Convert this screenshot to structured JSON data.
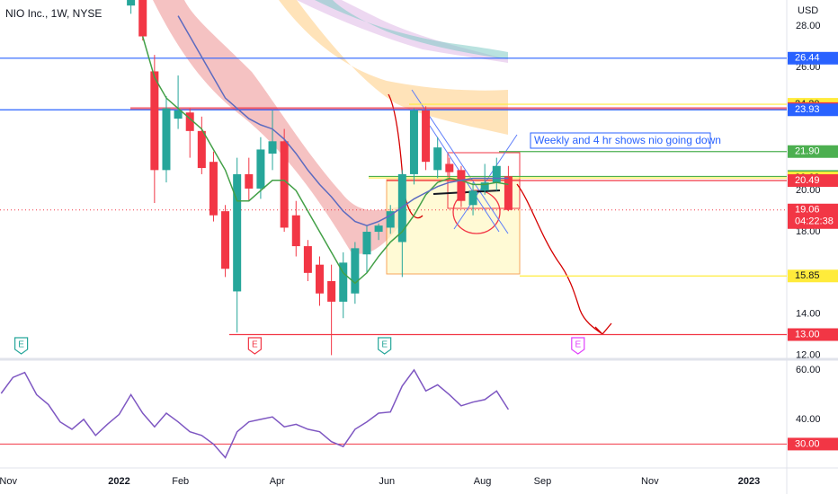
{
  "header": {
    "title": "NIO Inc., 1W, NYSE"
  },
  "chart_data": {
    "type": "candlestick",
    "currency": "USD",
    "x": [
      0,
      1,
      2,
      3,
      4,
      5,
      6,
      7,
      8,
      9,
      10,
      11,
      12,
      13,
      14,
      15,
      16,
      17,
      18,
      19,
      20,
      21,
      22,
      23,
      24,
      25,
      26,
      27,
      28,
      29,
      30,
      31,
      32
    ],
    "open": [
      29.0,
      29.4,
      25.8,
      21.0,
      23.5,
      23.8,
      22.9,
      21.4,
      19.0,
      15.1,
      20.8,
      20.1,
      21.8,
      22.4,
      18.8,
      17.3,
      16.4,
      15.6,
      14.6,
      15.0,
      16.9,
      18.0,
      18.2,
      17.5,
      20.8,
      23.9,
      21.0,
      21.3,
      21.0,
      19.3,
      20.0,
      20.4,
      20.7
    ],
    "high": [
      29.6,
      29.6,
      26.6,
      24.6,
      25.6,
      24.0,
      23.6,
      21.9,
      19.3,
      21.6,
      21.6,
      22.6,
      23.9,
      23.0,
      19.5,
      17.6,
      16.8,
      16.4,
      17.0,
      17.5,
      18.3,
      18.4,
      19.3,
      21.0,
      24.0,
      24.1,
      22.6,
      21.6,
      21.2,
      20.4,
      21.3,
      21.6,
      21.2
    ],
    "low": [
      28.6,
      27.3,
      19.4,
      20.4,
      23.0,
      21.6,
      20.8,
      18.5,
      15.8,
      13.1,
      19.5,
      19.6,
      21.0,
      18.0,
      16.8,
      15.6,
      14.4,
      12.0,
      13.8,
      14.5,
      16.0,
      17.6,
      17.9,
      15.8,
      20.3,
      21.0,
      20.6,
      20.5,
      19.2,
      18.8,
      19.8,
      20.0,
      19.0
    ],
    "close": [
      29.4,
      27.5,
      21.0,
      24.0,
      23.9,
      22.9,
      21.1,
      18.8,
      16.2,
      20.8,
      20.1,
      22.0,
      22.4,
      18.2,
      17.3,
      16.0,
      15.0,
      14.6,
      16.5,
      17.2,
      18.0,
      18.3,
      19.0,
      20.8,
      23.9,
      21.4,
      22.1,
      20.9,
      19.5,
      20.0,
      20.4,
      21.2,
      19.06
    ],
    "up_color": "#26a69a",
    "down_color": "#f23645",
    "lines": [
      {
        "color": "#43a047",
        "values": [
          null,
          27.5,
          25.5,
          24.5,
          24.0,
          23.5,
          23.0,
          22.0,
          21.0,
          19.5,
          19.5,
          20.0,
          20.5,
          20.5,
          20.0,
          19.0,
          18.0,
          17.0,
          16.0,
          15.5,
          16.0,
          16.8,
          17.5,
          18.0,
          18.8,
          19.8,
          20.4,
          20.6,
          20.5,
          20.3,
          20.3,
          20.4,
          20.3
        ]
      },
      {
        "color": "#5c6bc0",
        "values": [
          null,
          null,
          null,
          null,
          28.5,
          27.5,
          26.5,
          25.5,
          24.5,
          24.0,
          23.5,
          23.2,
          23.0,
          22.5,
          21.8,
          21.0,
          20.3,
          19.7,
          19.0,
          18.5,
          18.3,
          18.5,
          18.8,
          19.2,
          19.6,
          19.9,
          20.2,
          20.4,
          20.5,
          20.6,
          20.6,
          20.6,
          20.6
        ]
      }
    ],
    "xlim": [
      -11.1,
      55.6
    ],
    "xticks": [
      {
        "value": -10.4,
        "label": "Nov"
      },
      {
        "value": -1.0,
        "label": "2022"
      },
      {
        "value": 4.2,
        "label": "Feb"
      },
      {
        "value": 12.4,
        "label": "Apr"
      },
      {
        "value": 21.7,
        "label": "Jun"
      },
      {
        "value": 29.8,
        "label": "Aug"
      },
      {
        "value": 34.9,
        "label": "Sep"
      },
      {
        "value": 44.0,
        "label": "Nov"
      },
      {
        "value": 52.4,
        "label": "2023"
      }
    ],
    "ylim": [
      11.8,
      29.27
    ],
    "yticks": [
      {
        "value": 28,
        "label": "28.00"
      },
      {
        "value": 26,
        "label": "26.00"
      },
      {
        "value": 20,
        "label": "20.00"
      },
      {
        "value": 18,
        "label": "18.00"
      },
      {
        "value": 14,
        "label": "14.00"
      },
      {
        "value": 12,
        "label": "12.00"
      }
    ],
    "levels": [
      {
        "value": 26.44,
        "color": "#2962ff"
      },
      {
        "value": 24.2,
        "label": "24.20",
        "color": "#ffeb3b"
      },
      {
        "value": 23.99,
        "color": "#f23645"
      },
      {
        "value": 23.93,
        "color": "#2962ff"
      },
      {
        "value": 21.9,
        "label": "21.90",
        "color": "#4caf50"
      },
      {
        "value": 20.69,
        "color": "#4caf50"
      },
      {
        "value": 20.62,
        "color": "#ffeb3b"
      },
      {
        "value": 20.49,
        "color": "#f23645"
      },
      {
        "value": 19.06,
        "color": "#f23645",
        "countdown": "04:22:38"
      },
      {
        "value": 15.85,
        "color": "#ffeb3b"
      },
      {
        "value": 13,
        "label": "13.00",
        "color": "#f23645"
      }
    ],
    "annotation": "Weekly and 4 hr shows nio going down",
    "earnings": [
      {
        "x": -9.3,
        "label": "E",
        "color": "#26a69a"
      },
      {
        "x": 10.5,
        "label": "E",
        "color": "#f23645"
      },
      {
        "x": 21.5,
        "label": "E",
        "color": "#26a69a"
      },
      {
        "x": 37.9,
        "label": "E",
        "color": "#e040fb"
      }
    ]
  },
  "rsi": {
    "type": "line",
    "color": "#7e57c2",
    "x": [
      -11,
      -10,
      -9,
      -8,
      -7,
      -6,
      -5,
      -4,
      -3,
      -2,
      -1,
      0,
      1,
      2,
      3,
      4,
      5,
      6,
      7,
      8,
      9,
      10,
      11,
      12,
      13,
      14,
      15,
      16,
      17,
      18,
      19,
      20,
      21,
      22,
      23,
      24,
      25,
      26,
      27,
      28,
      29,
      30,
      31,
      32
    ],
    "values": [
      50.5,
      57,
      59,
      50,
      46,
      39,
      36,
      40,
      33.5,
      38,
      42,
      50,
      42.5,
      37,
      42.5,
      39,
      35,
      33.5,
      30,
      24.5,
      35,
      39,
      40,
      41,
      37,
      38,
      36,
      35,
      31,
      29,
      36,
      39,
      42.5,
      43,
      53.5,
      60,
      51.5,
      54,
      50,
      45.5,
      47,
      48,
      51.5,
      44
    ],
    "ylim": [
      20.7,
      63.6
    ],
    "yticks": [
      {
        "value": 60,
        "label": "60.00"
      },
      {
        "value": 40,
        "label": "40.00"
      }
    ],
    "level": {
      "value": 30,
      "label": "30.00",
      "color": "#f23645"
    }
  }
}
